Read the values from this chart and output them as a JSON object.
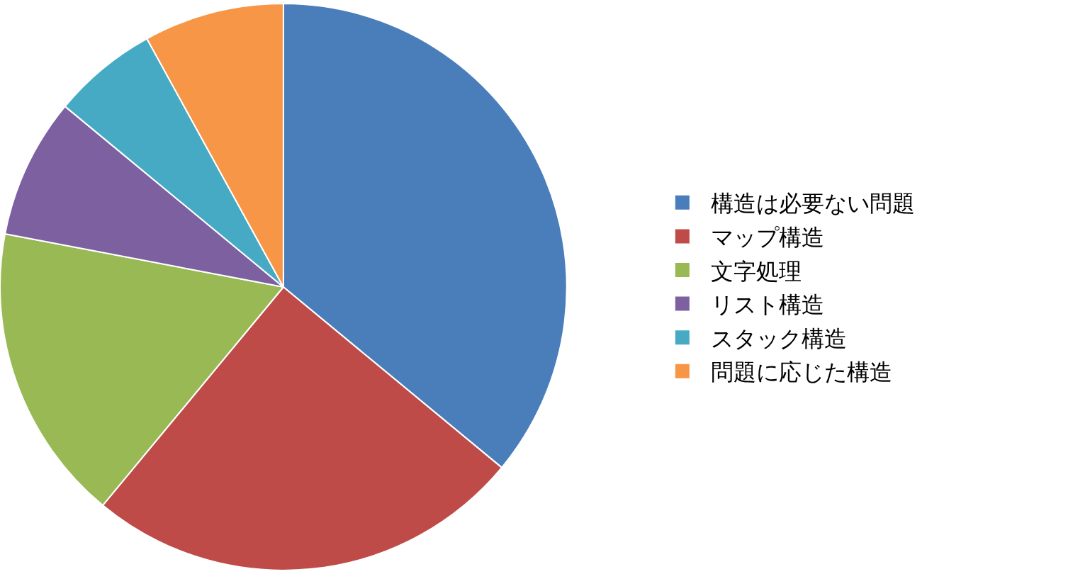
{
  "chart_data": {
    "type": "pie",
    "categories": [
      "構造は必要ない問題",
      "マップ構造",
      "文字処理",
      "リスト構造",
      "スタック構造",
      "問題に応じた構造"
    ],
    "values": [
      36,
      25,
      17,
      8,
      6,
      8
    ],
    "colors": [
      "#4a7ebb",
      "#be4b48",
      "#98b954",
      "#7d60a0",
      "#46aac5",
      "#f79646"
    ],
    "legend": "right"
  }
}
